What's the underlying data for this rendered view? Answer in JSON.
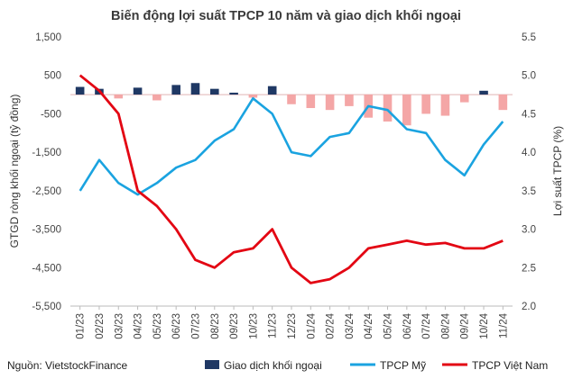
{
  "chart_data": {
    "type": "bar+line",
    "title": "Biến động lợi suất TPCP 10 năm và giao dịch khối ngoại",
    "source": "Nguồn: VietstockFinance",
    "ylabel_left": "GTGD ròng khối ngoại (tỷ đồng)",
    "ylabel_right": "Lợi suất TPCP (%)",
    "ylim_left": [
      -5500,
      1500
    ],
    "ylim_right": [
      2.0,
      5.5
    ],
    "yticks_left": [
      "1,500",
      "500",
      "-500",
      "-1,500",
      "-2,500",
      "-3,500",
      "-4,500",
      "-5,500"
    ],
    "yticks_right": [
      "5.5",
      "5.0",
      "4.5",
      "4.0",
      "3.5",
      "3.0",
      "2.5",
      "2.0"
    ],
    "x_ticks": [
      "01/23",
      "02/23",
      "03/23",
      "04/23",
      "05/23",
      "06/23",
      "07/23",
      "08/23",
      "09/23",
      "10/23",
      "11/23",
      "12/23",
      "01/24",
      "02/24",
      "03/24",
      "04/24",
      "05/24",
      "06/24",
      "07/24",
      "08/24",
      "09/24",
      "10/24",
      "11/24"
    ],
    "grid": false,
    "legend_position": "bottom",
    "colors": {
      "bars_positive": "#1f3864",
      "bars_negative": "#f4a6a6",
      "tpcp_my": "#1aa3e0",
      "tpcp_vn": "#e30613",
      "zero_line": "#e0b3b3"
    },
    "series": [
      {
        "name": "Giao dịch khối ngoại",
        "kind": "bar",
        "x": [
          "01/23",
          "02/23",
          "03/23",
          "04/23",
          "05/23",
          "06/23",
          "07/23",
          "08/23",
          "09/23",
          "10/23",
          "11/23",
          "12/23",
          "01/24",
          "02/24",
          "03/24",
          "04/24",
          "05/24",
          "06/24",
          "07/24",
          "08/24",
          "09/24",
          "10/24",
          "11/24"
        ],
        "values": [
          200,
          150,
          -100,
          180,
          -150,
          250,
          300,
          150,
          50,
          -80,
          220,
          -250,
          -350,
          -400,
          -300,
          -600,
          -700,
          -800,
          -500,
          -550,
          -200,
          100,
          -400
        ]
      },
      {
        "name": "TPCP Mỹ",
        "kind": "line",
        "axis": "right",
        "x": [
          "01/23",
          "02/23",
          "03/23",
          "04/23",
          "05/23",
          "06/23",
          "07/23",
          "08/23",
          "09/23",
          "10/23",
          "11/23",
          "12/23",
          "01/24",
          "02/24",
          "03/24",
          "04/24",
          "05/24",
          "06/24",
          "07/24",
          "08/24",
          "09/24",
          "10/24",
          "11/24"
        ],
        "values": [
          3.5,
          3.9,
          3.6,
          3.45,
          3.6,
          3.8,
          3.9,
          4.15,
          4.3,
          4.7,
          4.5,
          4.0,
          3.95,
          4.2,
          4.25,
          4.6,
          4.55,
          4.3,
          4.25,
          3.9,
          3.7,
          4.1,
          4.4
        ]
      },
      {
        "name": "TPCP Việt Nam",
        "kind": "line",
        "axis": "right",
        "x": [
          "01/23",
          "02/23",
          "03/23",
          "04/23",
          "05/23",
          "06/23",
          "07/23",
          "08/23",
          "09/23",
          "10/23",
          "11/23",
          "12/23",
          "01/24",
          "02/24",
          "03/24",
          "04/24",
          "05/24",
          "06/24",
          "07/24",
          "08/24",
          "09/24",
          "10/24",
          "11/24"
        ],
        "values": [
          5.0,
          4.8,
          4.5,
          3.5,
          3.3,
          3.0,
          2.6,
          2.5,
          2.7,
          2.75,
          3.0,
          2.5,
          2.3,
          2.35,
          2.5,
          2.75,
          2.8,
          2.85,
          2.8,
          2.82,
          2.75,
          2.75,
          2.85
        ]
      }
    ]
  }
}
